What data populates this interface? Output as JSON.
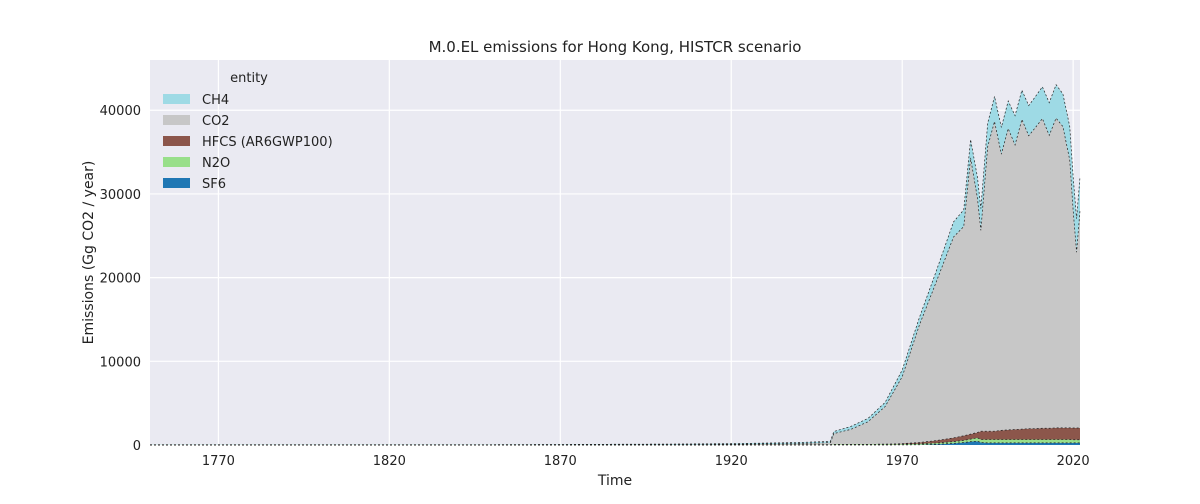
{
  "chart_data": {
    "type": "area",
    "stacked": true,
    "title": "M.0.EL emissions for Hong Kong, HISTCR scenario",
    "xlabel": "Time",
    "ylabel": "Emissions (Gg CO2 / year)",
    "xlim": [
      1750,
      2022
    ],
    "ylim": [
      0,
      46000
    ],
    "xticks": [
      1770,
      1820,
      1870,
      1920,
      1970,
      2020
    ],
    "yticks": [
      0,
      10000,
      20000,
      30000,
      40000
    ],
    "grid": true,
    "legend": {
      "title": "entity",
      "placement": "top-left"
    },
    "x": [
      1750,
      1800,
      1850,
      1900,
      1920,
      1940,
      1949,
      1950,
      1955,
      1960,
      1965,
      1970,
      1975,
      1980,
      1985,
      1988,
      1990,
      1992,
      1993,
      1995,
      1997,
      1999,
      2001,
      2003,
      2005,
      2007,
      2009,
      2011,
      2013,
      2015,
      2017,
      2019,
      2020,
      2021,
      2022
    ],
    "series": [
      {
        "name": "SF6",
        "color": "#1f77b4",
        "values": [
          0,
          0,
          0,
          0,
          0,
          0,
          0,
          0,
          0,
          0,
          0,
          10,
          30,
          80,
          200,
          300,
          400,
          450,
          300,
          250,
          250,
          250,
          250,
          250,
          250,
          250,
          250,
          250,
          250,
          250,
          250,
          250,
          250,
          250,
          250
        ]
      },
      {
        "name": "N2O",
        "color": "#98df8a",
        "values": [
          10,
          10,
          10,
          15,
          20,
          30,
          35,
          60,
          70,
          80,
          90,
          100,
          120,
          150,
          200,
          250,
          300,
          400,
          350,
          400,
          400,
          400,
          400,
          400,
          400,
          400,
          400,
          400,
          400,
          400,
          400,
          400,
          380,
          380,
          380
        ]
      },
      {
        "name": "HFCS (AR6GWP100)",
        "color": "#8c564b",
        "values": [
          0,
          0,
          0,
          0,
          0,
          0,
          0,
          0,
          0,
          0,
          0,
          50,
          150,
          300,
          450,
          550,
          600,
          650,
          1000,
          1000,
          1000,
          1100,
          1150,
          1200,
          1250,
          1300,
          1300,
          1350,
          1350,
          1400,
          1400,
          1400,
          1400,
          1400,
          1400
        ]
      },
      {
        "name": "CO2",
        "color": "#c7c7c7",
        "values": [
          0,
          0,
          0,
          30,
          60,
          150,
          250,
          1300,
          1800,
          2700,
          4500,
          8000,
          14000,
          19000,
          24000,
          25000,
          33000,
          28000,
          24000,
          34000,
          37000,
          33000,
          36000,
          34000,
          37000,
          35000,
          36000,
          37000,
          35000,
          37000,
          36000,
          32000,
          26000,
          21000,
          26000
        ]
      },
      {
        "name": "CH4",
        "color": "#9edae5",
        "values": [
          30,
          30,
          30,
          60,
          80,
          120,
          150,
          250,
          350,
          400,
          500,
          800,
          900,
          1300,
          1800,
          2000,
          2200,
          2500,
          2600,
          2800,
          3000,
          3200,
          3300,
          3500,
          3500,
          3600,
          3700,
          3800,
          3900,
          4000,
          3900,
          4000,
          4000,
          4000,
          4000
        ]
      }
    ]
  }
}
